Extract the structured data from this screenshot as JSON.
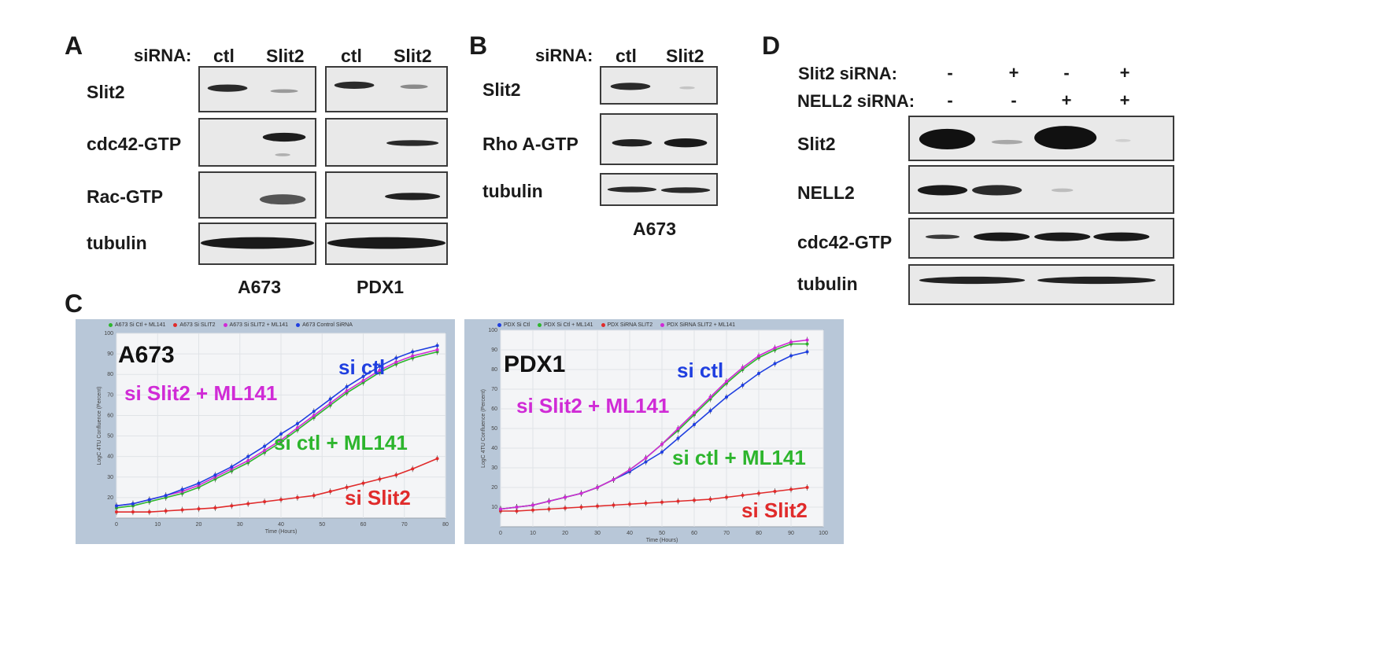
{
  "panels": {
    "A": {
      "letter": "A",
      "header_prefix": "siRNA:",
      "lane_labels": [
        "ctl",
        "Slit2",
        "ctl",
        "Slit2"
      ],
      "rows": [
        "Slit2",
        "cdc42-GTP",
        "Rac-GTP",
        "tubulin"
      ],
      "cell_lines": [
        "A673",
        "PDX1"
      ]
    },
    "B": {
      "letter": "B",
      "header_prefix": "siRNA:",
      "lane_labels": [
        "ctl",
        "Slit2"
      ],
      "rows": [
        "Slit2",
        "Rho A-GTP",
        "tubulin"
      ],
      "cell_line": "A673"
    },
    "C": {
      "letter": "C"
    },
    "D": {
      "letter": "D",
      "treatments": [
        {
          "label": "Slit2 siRNA:",
          "values": [
            "-",
            "+",
            "-",
            "+"
          ]
        },
        {
          "label": "NELL2 siRNA:",
          "values": [
            "-",
            "-",
            "+",
            "+"
          ]
        }
      ],
      "rows": [
        "Slit2",
        "NELL2",
        "cdc42-GTP",
        "tubulin"
      ]
    }
  },
  "chart_data": [
    {
      "type": "line",
      "title": "A673",
      "xlabel": "Time (Hours)",
      "ylabel": "LogC 4TU Confluence (Percent)",
      "xlim": [
        0,
        80
      ],
      "ylim": [
        10,
        100
      ],
      "xticks": [
        0,
        10,
        20,
        30,
        40,
        50,
        60,
        70,
        80
      ],
      "yticks": [
        20,
        30,
        40,
        50,
        60,
        70,
        80,
        90,
        100
      ],
      "legend": [
        "A673 Si Ctl + ML141",
        "A673 Si SLIT2",
        "A673 Si SLIT2 + ML141",
        "A673 Control SiRNA"
      ],
      "annotations": [
        {
          "text": "si ctl",
          "color": "#1f3fe0"
        },
        {
          "text": "si Slit2 + ML141",
          "color": "#d02bd6"
        },
        {
          "text": "si ctl + ML141",
          "color": "#2db52d"
        },
        {
          "text": "si Slit2",
          "color": "#e02b2b"
        }
      ],
      "x": [
        0,
        4,
        8,
        12,
        16,
        20,
        24,
        28,
        32,
        36,
        40,
        44,
        48,
        52,
        56,
        60,
        64,
        68,
        72,
        78
      ],
      "series": [
        {
          "color": "#2db52d",
          "values": [
            15,
            16,
            18,
            20,
            22,
            25,
            29,
            33,
            37,
            42,
            47,
            53,
            59,
            65,
            71,
            76,
            81,
            85,
            88,
            91
          ]
        },
        {
          "color": "#e02b2b",
          "values": [
            13,
            13,
            13,
            13.5,
            14,
            14.5,
            15,
            16,
            17,
            18,
            19,
            20,
            21,
            23,
            25,
            27,
            29,
            31,
            34,
            39
          ]
        },
        {
          "color": "#d02bd6",
          "values": [
            16,
            17,
            19,
            21,
            23,
            26,
            30,
            34,
            38,
            43,
            48,
            54,
            60,
            66,
            72,
            77,
            82,
            86,
            89,
            92
          ]
        },
        {
          "color": "#1f3fe0",
          "values": [
            16,
            17,
            19,
            21,
            24,
            27,
            31,
            35,
            40,
            45,
            51,
            56,
            62,
            68,
            74,
            79,
            84,
            88,
            91,
            94
          ]
        }
      ]
    },
    {
      "type": "line",
      "title": "PDX1",
      "xlabel": "Time (Hours)",
      "ylabel": "LogC 4TU Confluence (Percent)",
      "xlim": [
        0,
        100
      ],
      "ylim": [
        0,
        100
      ],
      "xticks": [
        0,
        10,
        20,
        30,
        40,
        50,
        60,
        70,
        80,
        90,
        100
      ],
      "yticks": [
        10,
        20,
        30,
        40,
        50,
        60,
        70,
        80,
        90,
        100
      ],
      "legend": [
        "PDX Si Ctl",
        "PDX Si Ctl + ML141",
        "PDX SiRNA SLIT2",
        "PDX SiRNA SLIT2 + ML141"
      ],
      "annotations": [
        {
          "text": "si ctl",
          "color": "#1f3fe0"
        },
        {
          "text": "si Slit2 + ML141",
          "color": "#d02bd6"
        },
        {
          "text": "si ctl + ML141",
          "color": "#2db52d"
        },
        {
          "text": "si Slit2",
          "color": "#e02b2b"
        }
      ],
      "x": [
        0,
        5,
        10,
        15,
        20,
        25,
        30,
        35,
        40,
        45,
        50,
        55,
        60,
        65,
        70,
        75,
        80,
        85,
        90,
        95
      ],
      "series": [
        {
          "color": "#1f3fe0",
          "values": [
            9,
            10,
            11,
            13,
            15,
            17,
            20,
            24,
            28,
            33,
            38,
            45,
            52,
            59,
            66,
            72,
            78,
            83,
            87,
            89
          ]
        },
        {
          "color": "#2db52d",
          "values": [
            9,
            10,
            11,
            13,
            15,
            17,
            20,
            24,
            29,
            35,
            42,
            49,
            57,
            65,
            73,
            80,
            86,
            90,
            93,
            93
          ]
        },
        {
          "color": "#e02b2b",
          "values": [
            8,
            8,
            8.5,
            9,
            9.5,
            10,
            10.5,
            11,
            11.5,
            12,
            12.5,
            13,
            13.5,
            14,
            15,
            16,
            17,
            18,
            19,
            20
          ]
        },
        {
          "color": "#d02bd6",
          "values": [
            9,
            10,
            11,
            13,
            15,
            17,
            20,
            24,
            29,
            35,
            42,
            50,
            58,
            66,
            74,
            81,
            87,
            91,
            94,
            95
          ]
        }
      ]
    }
  ]
}
